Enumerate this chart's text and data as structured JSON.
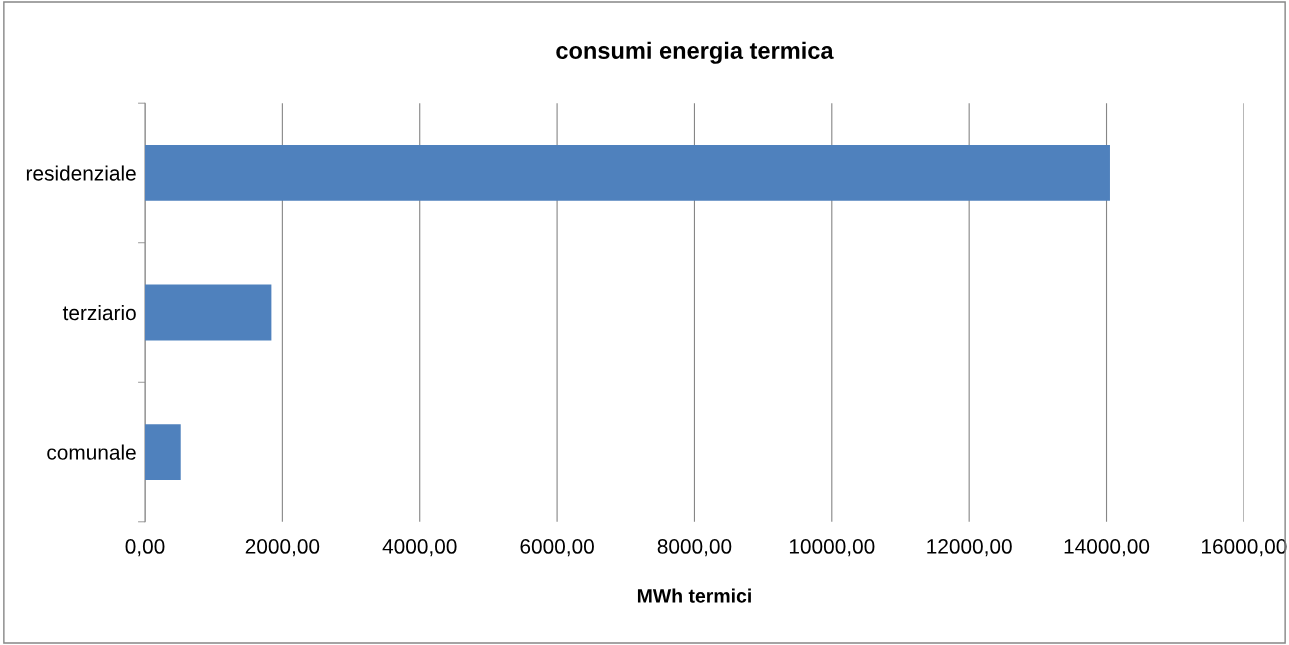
{
  "chart_data": {
    "type": "bar",
    "orientation": "horizontal",
    "title": "consumi energia termica",
    "xlabel": "MWh termici",
    "categories": [
      "residenziale",
      "terziario",
      "comunale"
    ],
    "values": [
      14050,
      1840,
      520
    ],
    "color": "#4f81bd",
    "xlim": [
      0,
      16000
    ],
    "xticks": [
      {
        "value": 0,
        "label": "0,00"
      },
      {
        "value": 2000,
        "label": "2000,00"
      },
      {
        "value": 4000,
        "label": "4000,00"
      },
      {
        "value": 6000,
        "label": "6000,00"
      },
      {
        "value": 8000,
        "label": "8000,00"
      },
      {
        "value": 10000,
        "label": "10000,00"
      },
      {
        "value": 12000,
        "label": "12000,00"
      },
      {
        "value": 14000,
        "label": "14000,00"
      },
      {
        "value": 16000,
        "label": "16000,00"
      }
    ],
    "grid": "x"
  }
}
